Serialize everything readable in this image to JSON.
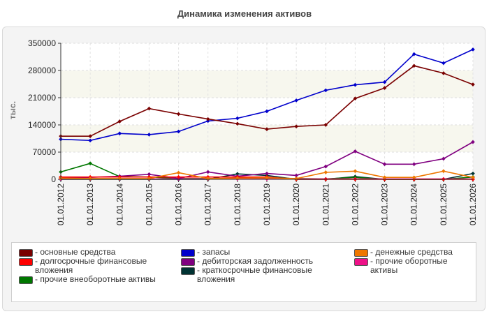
{
  "chart_data": {
    "type": "line",
    "title": "Динамика изменения активов",
    "ylabel": "тыс.",
    "xlabel": "",
    "ylim": [
      0,
      350000
    ],
    "yticks": [
      0,
      70000,
      140000,
      210000,
      280000,
      350000
    ],
    "categories": [
      "01.01.2012",
      "01.01.2013",
      "01.01.2014",
      "01.01.2015",
      "01.01.2016",
      "01.01.2017",
      "01.01.2018",
      "01.01.2019",
      "01.01.2020",
      "01.01.2021",
      "01.01.2022",
      "01.01.2023",
      "01.01.2024",
      "01.01.2025",
      "01.01.2026"
    ],
    "grid": true,
    "legend_position": "bottom",
    "series": [
      {
        "name": "- основные средства",
        "color": "#7a0000",
        "values": [
          111000,
          111000,
          149000,
          182000,
          168000,
          155000,
          143000,
          129000,
          136000,
          140000,
          208000,
          235000,
          292000,
          273000,
          244000
        ]
      },
      {
        "name": "- запасы",
        "color": "#0000cc",
        "values": [
          103000,
          100000,
          118000,
          115000,
          123000,
          150000,
          157000,
          175000,
          203000,
          229000,
          243000,
          250000,
          322000,
          299000,
          334000
        ]
      },
      {
        "name": "- денежные средства",
        "color": "#ee7700",
        "values": [
          3000,
          2000,
          2000,
          2000,
          17000,
          2000,
          3000,
          4000,
          2000,
          18000,
          21000,
          5000,
          5000,
          21000,
          5000
        ]
      },
      {
        "name": "- долгосрочные финансовые вложения",
        "color": "#ff0000",
        "values": [
          6000,
          6000,
          6000,
          6000,
          6000,
          6000,
          6000,
          6000,
          0,
          0,
          0,
          0,
          0,
          0,
          0
        ]
      },
      {
        "name": "- дебиторская задолженность",
        "color": "#800080",
        "values": [
          4000,
          5000,
          8000,
          13000,
          2000,
          19000,
          8000,
          15000,
          10000,
          33000,
          72000,
          39000,
          39000,
          53000,
          96000
        ]
      },
      {
        "name": "- прочие оборотные активы",
        "color": "#ee1188",
        "values": [
          1000,
          1000,
          1000,
          1000,
          1000,
          1000,
          1000,
          1000,
          1000,
          1000,
          1000,
          1000,
          1000,
          1000,
          1000
        ]
      },
      {
        "name": "- прочие внеоборотные активы",
        "color": "#007700",
        "values": [
          19000,
          41000,
          7000,
          6000,
          2000,
          2000,
          2000,
          3000,
          2000,
          1000,
          5000,
          0,
          0,
          0,
          6000
        ]
      },
      {
        "name": "- краткосрочные финансовые вложения",
        "color": "#003333",
        "values": [
          0,
          0,
          0,
          0,
          0,
          0,
          14000,
          10000,
          0,
          0,
          7000,
          0,
          0,
          0,
          15000
        ]
      }
    ]
  }
}
